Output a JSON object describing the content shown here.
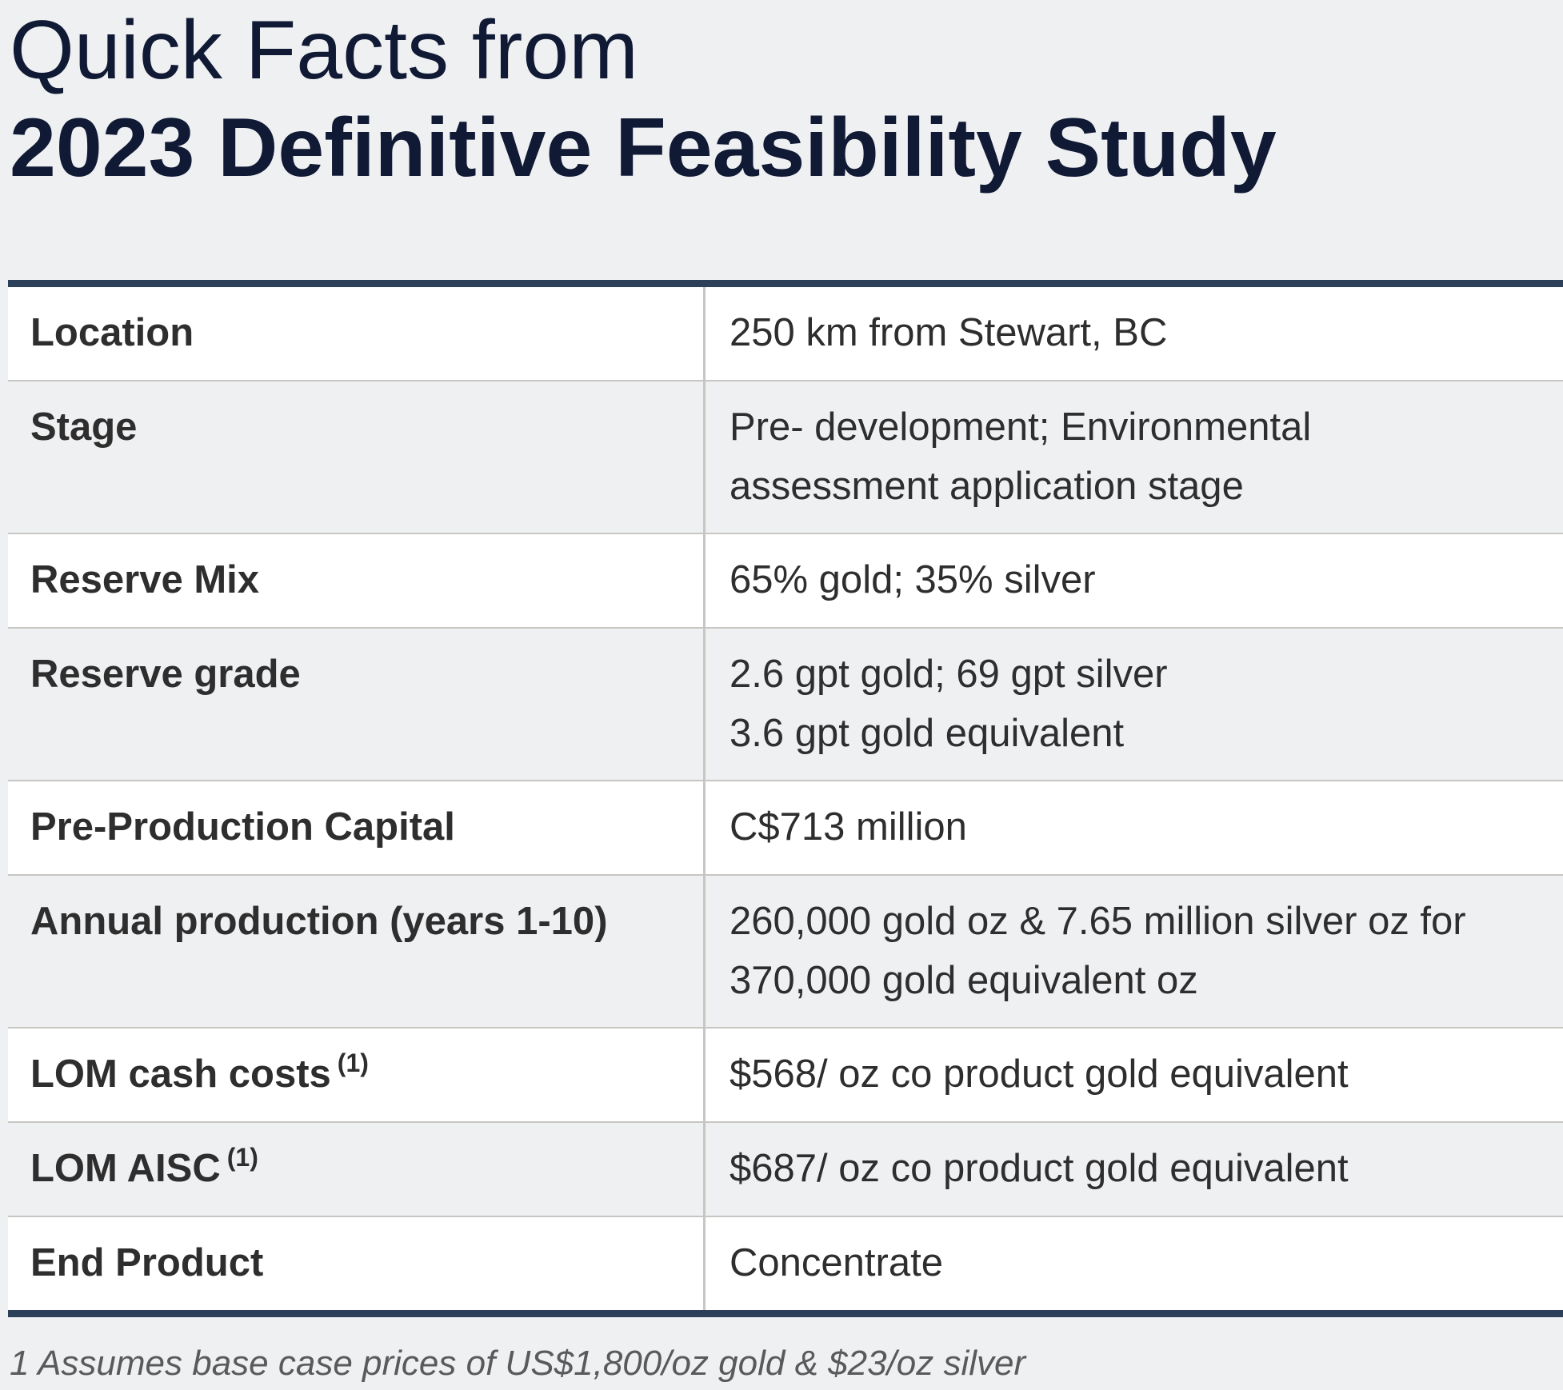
{
  "title": {
    "line1": "Quick Facts from",
    "line2": "2023 Definitive Feasibility Study"
  },
  "rows": [
    {
      "label": "Location",
      "value_lines": [
        "250 km from Stewart, BC"
      ]
    },
    {
      "label": "Stage",
      "value_lines": [
        "Pre- development; Environmental",
        "assessment application stage"
      ]
    },
    {
      "label": "Reserve Mix",
      "value_lines": [
        "65% gold; 35% silver"
      ]
    },
    {
      "label": "Reserve grade",
      "value_lines": [
        "2.6 gpt gold; 69 gpt silver",
        "3.6 gpt gold equivalent"
      ]
    },
    {
      "label": "Pre-Production Capital",
      "value_lines": [
        "C$713 million"
      ]
    },
    {
      "label": "Annual production (years 1-10)",
      "value_lines": [
        "260,000 gold oz & 7.65 million silver oz for",
        "370,000 gold equivalent oz"
      ]
    },
    {
      "label": "LOM cash costs",
      "superscript": "(1)",
      "value_lines": [
        "$568/ oz co product gold equivalent"
      ]
    },
    {
      "label": "LOM AISC",
      "superscript": "(1)",
      "value_lines": [
        "$687/ oz co product gold equivalent"
      ]
    },
    {
      "label": "End Product",
      "value_lines": [
        "Concentrate"
      ]
    }
  ],
  "footnote": "1 Assumes base case prices of US$1,800/oz gold & $23/oz silver"
}
